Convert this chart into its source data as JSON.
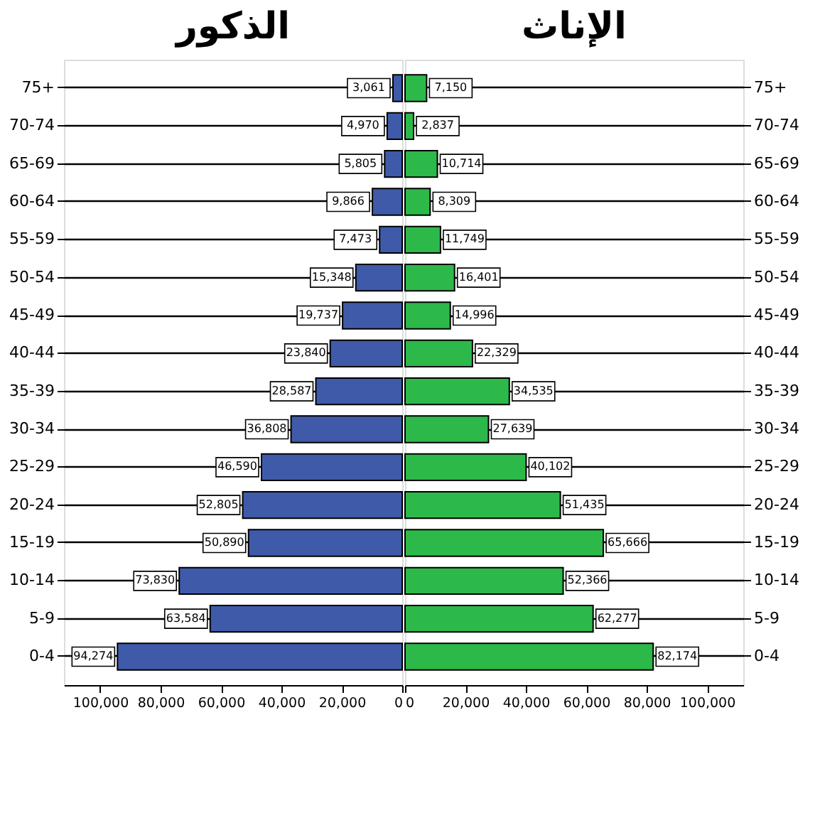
{
  "chart_data": [
    {
      "type": "bar",
      "orientation": "horizontal",
      "title": "الذكور",
      "categories": [
        "75+",
        "70-74",
        "65-69",
        "60-64",
        "55-59",
        "50-54",
        "45-49",
        "40-44",
        "35-39",
        "30-34",
        "25-29",
        "20-24",
        "15-19",
        "10-14",
        "5-9",
        "0-4"
      ],
      "values": [
        3061,
        4970,
        5805,
        9866,
        7473,
        15348,
        19737,
        23840,
        28587,
        36808,
        46590,
        52805,
        50890,
        73830,
        63584,
        94274
      ],
      "value_labels": [
        "3,061",
        "4,970",
        "5,805",
        "9,866",
        "7,473",
        "15,348",
        "19,737",
        "23,840",
        "28,587",
        "36,808",
        "46,590",
        "52,805",
        "50,890",
        "73,830",
        "63,584",
        "94,274"
      ],
      "color": "#3f5aa8",
      "xlim": [
        112000,
        0
      ],
      "xticks": [
        {
          "value": 100000,
          "label": "100,000"
        },
        {
          "value": 80000,
          "label": "80,000"
        },
        {
          "value": 60000,
          "label": "60,000"
        },
        {
          "value": 40000,
          "label": "40,000"
        },
        {
          "value": 20000,
          "label": "20,000"
        },
        0
      ],
      "grid": "y"
    },
    {
      "type": "bar",
      "orientation": "horizontal",
      "title": "الإناث",
      "categories": [
        "75+",
        "70-74",
        "65-69",
        "60-64",
        "55-59",
        "50-54",
        "45-49",
        "40-44",
        "35-39",
        "30-34",
        "25-29",
        "20-24",
        "15-19",
        "10-14",
        "5-9",
        "0-4"
      ],
      "values": [
        7150,
        2837,
        10714,
        8309,
        11749,
        16401,
        14996,
        22329,
        34535,
        27639,
        40102,
        51435,
        65666,
        52366,
        62277,
        82174
      ],
      "value_labels": [
        "7,150",
        "2,837",
        "10,714",
        "8,309",
        "11,749",
        "16,401",
        "14,996",
        "22,329",
        "34,535",
        "27,639",
        "40,102",
        "51,435",
        "65,666",
        "52,366",
        "62,277",
        "82,174"
      ],
      "color": "#2db84a",
      "xlim": [
        0,
        112000
      ],
      "xticks": [
        0,
        {
          "value": 20000,
          "label": "20,000"
        },
        {
          "value": 40000,
          "label": "40,000"
        },
        {
          "value": 60000,
          "label": "60,000"
        },
        {
          "value": 80000,
          "label": "80,000"
        },
        {
          "value": 100000,
          "label": "100,000"
        }
      ],
      "grid": "y"
    }
  ]
}
